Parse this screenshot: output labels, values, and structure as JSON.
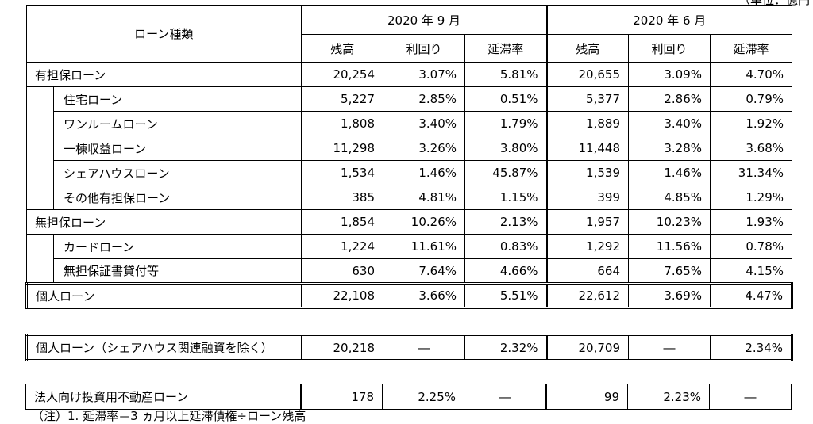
{
  "unit_note": "（単位：億円）",
  "footnote": "（注）1. 延滞率＝3 ヵ月以上延滞債権÷ローン残高",
  "header": {
    "corner": "ローン種類",
    "periods": [
      "2020 年 9 月",
      "2020 年 6 月"
    ],
    "cols": [
      "残高",
      "利回り",
      "延滞率",
      "残高",
      "利回り",
      "延滞率"
    ]
  },
  "rows": [
    {
      "name": "有担保ローン",
      "v": [
        "20,254",
        "3.07%",
        "5.81%",
        "20,655",
        "3.09%",
        "4.70%"
      ]
    },
    {
      "name": "住宅ローン",
      "v": [
        "5,227",
        "2.85%",
        "0.51%",
        "5,377",
        "2.86%",
        "0.79%"
      ]
    },
    {
      "name": "ワンルームローン",
      "v": [
        "1,808",
        "3.40%",
        "1.79%",
        "1,889",
        "3.40%",
        "1.92%"
      ]
    },
    {
      "name": "一棟収益ローン",
      "v": [
        "11,298",
        "3.26%",
        "3.80%",
        "11,448",
        "3.28%",
        "3.68%"
      ]
    },
    {
      "name": "シェアハウスローン",
      "v": [
        "1,534",
        "1.46%",
        "45.87%",
        "1,539",
        "1.46%",
        "31.34%"
      ]
    },
    {
      "name": "その他有担保ローン",
      "v": [
        "385",
        "4.81%",
        "1.15%",
        "399",
        "4.85%",
        "1.29%"
      ]
    },
    {
      "name": "無担保ローン",
      "v": [
        "1,854",
        "10.26%",
        "2.13%",
        "1,957",
        "10.23%",
        "1.93%"
      ]
    },
    {
      "name": "カードローン",
      "v": [
        "1,224",
        "11.61%",
        "0.83%",
        "1,292",
        "11.56%",
        "0.78%"
      ]
    },
    {
      "name": "無担保証書貸付等",
      "v": [
        "630",
        "7.64%",
        "4.66%",
        "664",
        "7.65%",
        "4.15%"
      ]
    },
    {
      "name": "個人ローン",
      "v": [
        "22,108",
        "3.66%",
        "5.51%",
        "22,612",
        "3.69%",
        "4.47%"
      ]
    }
  ],
  "table2": {
    "name": "個人ローン（シェアハウス関連融資を除く）",
    "v": [
      "20,218",
      "―",
      "2.32%",
      "20,709",
      "―",
      "2.34%"
    ]
  },
  "table3": {
    "name": "法人向け投資用不動産ローン",
    "v": [
      "178",
      "2.25%",
      "―",
      "99",
      "2.23%",
      "―"
    ]
  }
}
